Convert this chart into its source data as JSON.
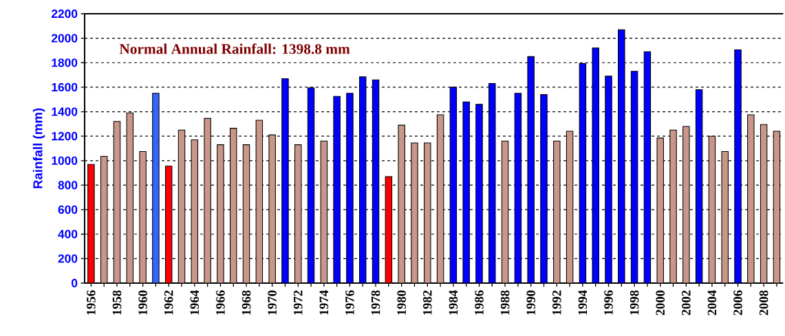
{
  "chart_data": {
    "type": "bar",
    "ylabel": "Rainfall (mm)",
    "annotations": [
      "Normal Annual Rainfall: 1398.8 mm"
    ],
    "categories": [
      "1956",
      null,
      "1958",
      null,
      "1960",
      null,
      "1962",
      null,
      "1964",
      null,
      "1966",
      null,
      "1968",
      null,
      "1970",
      null,
      "1972",
      null,
      "1974",
      null,
      "1976",
      null,
      "1978",
      null,
      "1980",
      null,
      "1982",
      null,
      "1984",
      null,
      "1986",
      null,
      "1988",
      null,
      "1990",
      null,
      "1992",
      null,
      "1994",
      null,
      "1996",
      null,
      "1998",
      null,
      "2000",
      null,
      "2002",
      null,
      "2004",
      null,
      "2006",
      null,
      "2008",
      null
    ],
    "values": [
      970,
      1035,
      1320,
      1390,
      1075,
      1550,
      955,
      1250,
      1170,
      1345,
      1130,
      1265,
      1130,
      1330,
      1210,
      1670,
      1130,
      1595,
      1160,
      1525,
      1550,
      1685,
      1660,
      870,
      1290,
      1145,
      1145,
      1375,
      1600,
      1480,
      1460,
      1630,
      1160,
      1550,
      1850,
      1540,
      1160,
      1240,
      1795,
      1920,
      1690,
      2070,
      1730,
      1890,
      1185,
      1250,
      1280,
      1580,
      1200,
      1075,
      1905,
      1375,
      1295,
      1240
    ],
    "colors": [
      "#ff0000",
      "#c9968a",
      "#c9968a",
      "#c9968a",
      "#c9968a",
      "#3366ff",
      "#ff0000",
      "#c9968a",
      "#c9968a",
      "#c9968a",
      "#c9968a",
      "#c9968a",
      "#c9968a",
      "#c9968a",
      "#c9968a",
      "#0000ff",
      "#c9968a",
      "#0000ff",
      "#c9968a",
      "#0000ff",
      "#0000ff",
      "#0000ff",
      "#0000ff",
      "#ff0000",
      "#c9968a",
      "#c9968a",
      "#c9968a",
      "#c9968a",
      "#0000ff",
      "#0000ff",
      "#0000ff",
      "#0000ff",
      "#c9968a",
      "#0000ff",
      "#0000ff",
      "#0000ff",
      "#c9968a",
      "#c9968a",
      "#0000ff",
      "#0000ff",
      "#0000ff",
      "#0000ff",
      "#0000ff",
      "#0000ff",
      "#c9968a",
      "#c9968a",
      "#c9968a",
      "#0000ff",
      "#c9968a",
      "#c9968a",
      "#0000ff",
      "#c9968a",
      "#c9968a",
      "#c9968a"
    ],
    "ylim": [
      0,
      2200
    ],
    "yticks": [
      0,
      200,
      400,
      600,
      800,
      1000,
      1200,
      1400,
      1600,
      1800,
      2000,
      2200
    ],
    "grid": "y"
  }
}
